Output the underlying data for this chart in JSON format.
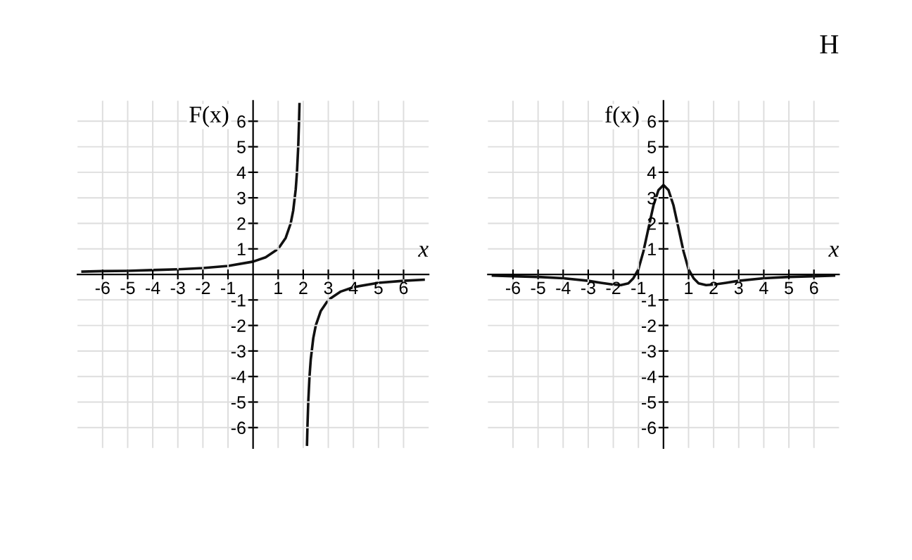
{
  "chart_data": [
    {
      "type": "line",
      "xlabel": "x",
      "ylabel": "F(x)",
      "xlim": [
        -7,
        7
      ],
      "ylim": [
        -6.8,
        6.8
      ],
      "xticks": [
        -6,
        -5,
        -4,
        -3,
        -2,
        -1,
        1,
        2,
        3,
        4,
        5,
        6
      ],
      "yticks": [
        -6,
        -5,
        -4,
        -3,
        -2,
        -1,
        1,
        2,
        3,
        4,
        5,
        6
      ],
      "grid": true,
      "legend": false,
      "series": [
        {
          "color": "#111111",
          "x": [
            -6.8,
            -6,
            -5,
            -4,
            -3,
            -2,
            -1,
            0,
            0.5,
            1,
            1.3,
            1.5,
            1.6,
            1.7,
            1.75,
            1.8,
            1.83,
            1.85
          ],
          "values": [
            0.11,
            0.13,
            0.14,
            0.17,
            0.2,
            0.25,
            0.33,
            0.5,
            0.67,
            1,
            1.43,
            2,
            2.5,
            3.33,
            4,
            5,
            5.9,
            6.67
          ]
        },
        {
          "color": "#111111",
          "x": [
            2.15,
            2.17,
            2.2,
            2.25,
            2.3,
            2.4,
            2.5,
            2.7,
            3,
            3.5,
            4,
            5,
            6,
            6.8
          ],
          "values": [
            -6.67,
            -5.9,
            -5,
            -4,
            -3.33,
            -2.5,
            -2,
            -1.43,
            -1,
            -0.67,
            -0.5,
            -0.33,
            -0.25,
            -0.21
          ]
        }
      ]
    },
    {
      "type": "line",
      "xlabel": "x",
      "ylabel": "f(x)",
      "xlim": [
        -7,
        7
      ],
      "ylim": [
        -6.8,
        6.8
      ],
      "xticks": [
        -6,
        -5,
        -4,
        -3,
        -2,
        -1,
        1,
        2,
        3,
        4,
        5,
        6
      ],
      "yticks": [
        -6,
        -5,
        -4,
        -3,
        -2,
        -1,
        1,
        2,
        3,
        4,
        5,
        6
      ],
      "grid": true,
      "legend": false,
      "annotations": [
        "H"
      ],
      "series": [
        {
          "color": "#111111",
          "x": [
            -6.8,
            -6,
            -5,
            -4,
            -3,
            -2.5,
            -2,
            -1.7,
            -1.4,
            -1.2,
            -1,
            -0.8,
            -0.6,
            -0.4,
            -0.2,
            0,
            0.2,
            0.4,
            0.6,
            0.8,
            1,
            1.2,
            1.4,
            1.7,
            2,
            2.5,
            3,
            4,
            5,
            6,
            6.8
          ],
          "values": [
            -0.05,
            -0.07,
            -0.1,
            -0.15,
            -0.25,
            -0.33,
            -0.4,
            -0.42,
            -0.35,
            -0.15,
            0.2,
            0.9,
            1.8,
            2.7,
            3.3,
            3.5,
            3.3,
            2.7,
            1.8,
            0.9,
            0.2,
            -0.15,
            -0.35,
            -0.42,
            -0.4,
            -0.33,
            -0.25,
            -0.15,
            -0.1,
            -0.07,
            -0.05
          ]
        }
      ]
    }
  ]
}
